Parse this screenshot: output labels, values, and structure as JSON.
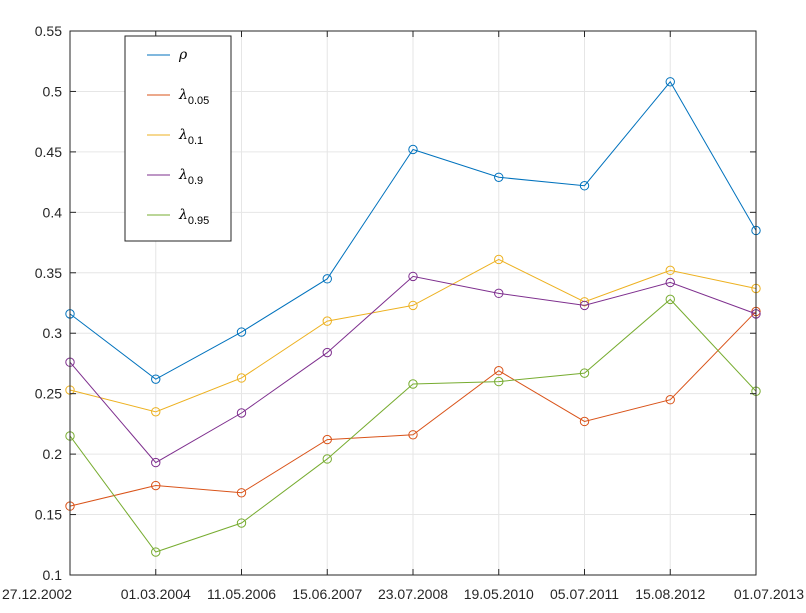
{
  "chart_data": {
    "type": "line",
    "categories": [
      "27.12.2002",
      "01.03.2004",
      "11.05.2006",
      "15.06.2007",
      "23.07.2008",
      "19.05.2010",
      "05.07.2011",
      "15.08.2012",
      "01.07.2013"
    ],
    "ylim": [
      0.1,
      0.55
    ],
    "yticks": [
      0.1,
      0.15,
      0.2,
      0.25,
      0.3,
      0.35,
      0.4,
      0.45,
      0.5,
      0.55
    ],
    "ytick_labels": [
      "0.1",
      "0.15",
      "0.2",
      "0.25",
      "0.3",
      "0.35",
      "0.4",
      "0.45",
      "0.5",
      "0.55"
    ],
    "grid": true,
    "legend_position": "top-left",
    "marker": "circle",
    "series": [
      {
        "name": "ρ",
        "symbol": "ρ",
        "subscript": "",
        "color": "#0072BD",
        "values": [
          0.316,
          0.262,
          0.301,
          0.345,
          0.452,
          0.429,
          0.422,
          0.508,
          0.385
        ]
      },
      {
        "name": "λ0.05",
        "symbol": "λ",
        "subscript": "0.05",
        "color": "#D95319",
        "values": [
          0.157,
          0.174,
          0.168,
          0.212,
          0.216,
          0.269,
          0.227,
          0.245,
          0.318
        ]
      },
      {
        "name": "λ0.1",
        "symbol": "λ",
        "subscript": "0.1",
        "color": "#EDB120",
        "values": [
          0.253,
          0.235,
          0.263,
          0.31,
          0.323,
          0.361,
          0.326,
          0.352,
          0.337
        ]
      },
      {
        "name": "λ0.9",
        "symbol": "λ",
        "subscript": "0.9",
        "color": "#7E2F8E",
        "values": [
          0.276,
          0.193,
          0.234,
          0.284,
          0.347,
          0.333,
          0.323,
          0.342,
          0.316
        ]
      },
      {
        "name": "λ0.95",
        "symbol": "λ",
        "subscript": "0.95",
        "color": "#77AC30",
        "values": [
          0.215,
          0.119,
          0.143,
          0.196,
          0.258,
          0.26,
          0.267,
          0.328,
          0.252
        ]
      }
    ]
  }
}
